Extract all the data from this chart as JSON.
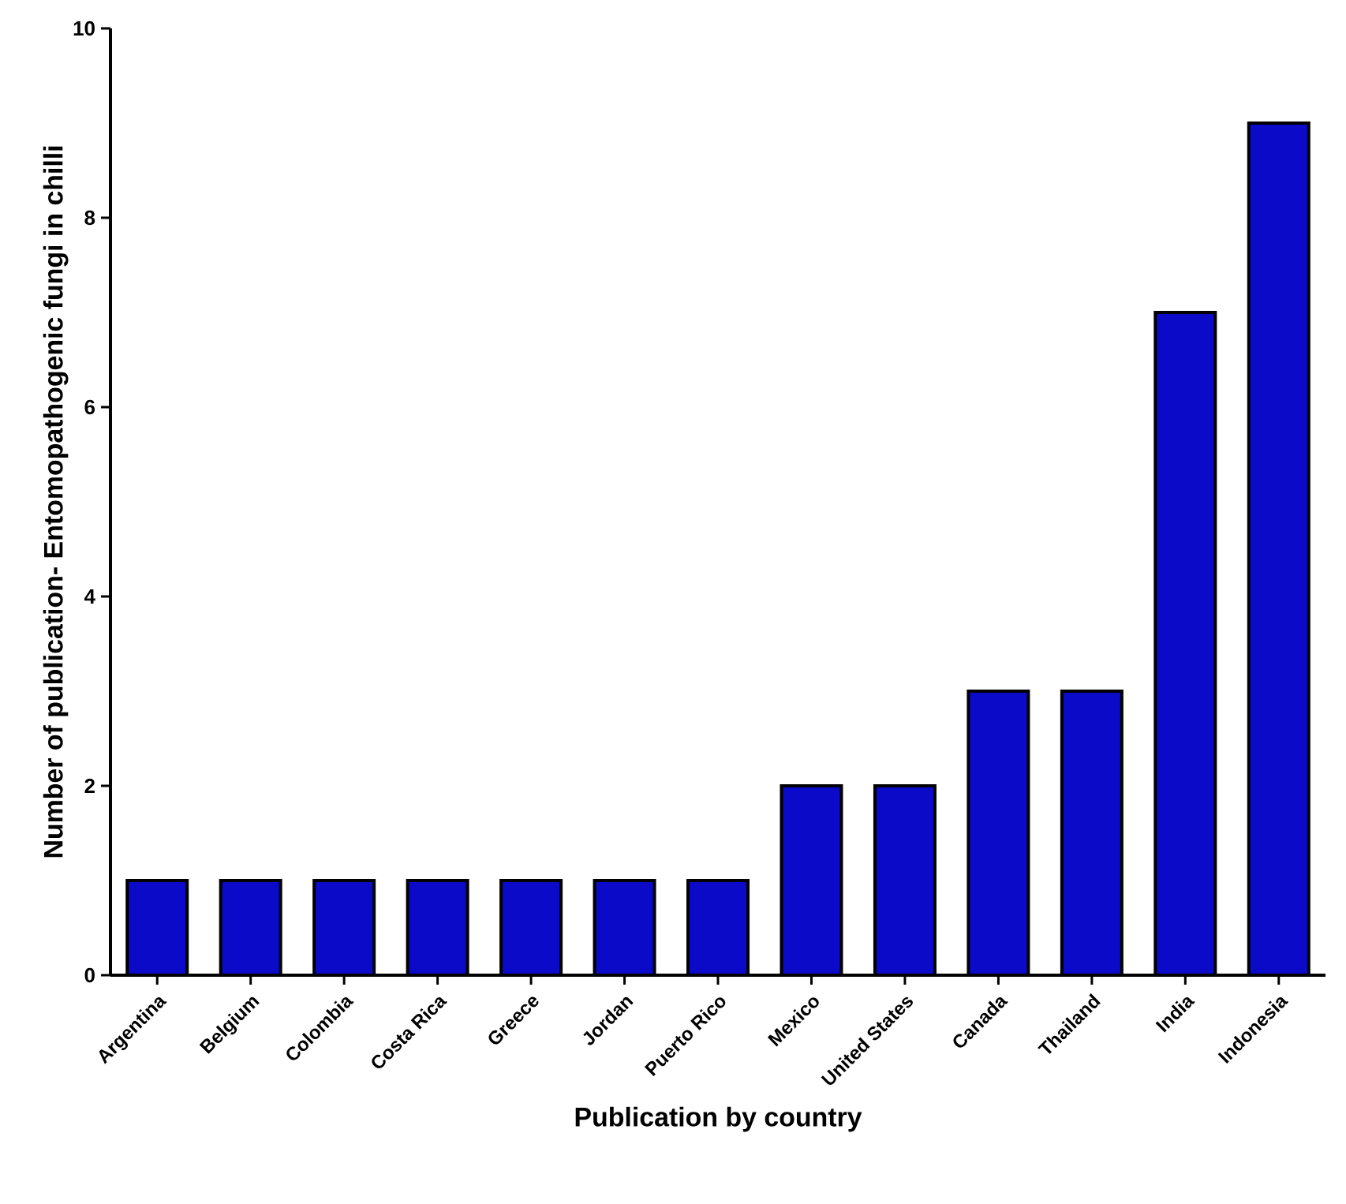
{
  "chart_data": {
    "type": "bar",
    "xlabel": "Publication by country",
    "ylabel": "Number of publication- Entomopathogenic fungi in chilli",
    "categories": [
      "Argentina",
      "Belgium",
      "Colombia",
      "Costa Rica",
      "Greece",
      "Jordan",
      "Puerto Rico",
      "Mexico",
      "United States",
      "Canada",
      "Thailand",
      "India",
      "Indonesia"
    ],
    "values": [
      1,
      1,
      1,
      1,
      1,
      1,
      1,
      2,
      2,
      3,
      3,
      7,
      9
    ],
    "color": "#0a0ac8",
    "ylim": [
      0,
      10
    ],
    "yticks": [
      0,
      2,
      4,
      6,
      8,
      10
    ],
    "grid": false
  }
}
